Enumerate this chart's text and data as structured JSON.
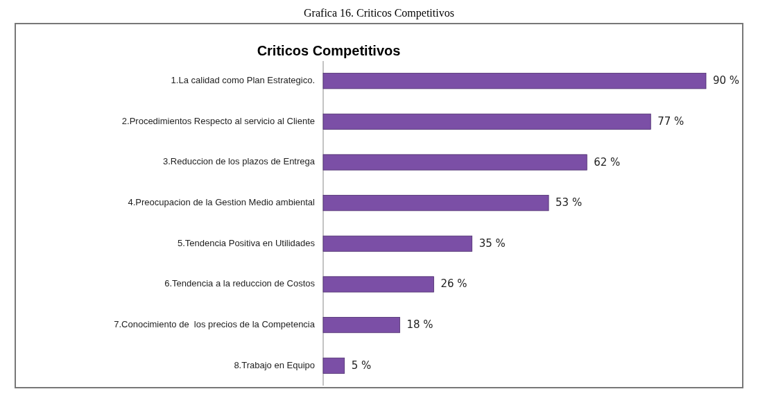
{
  "chart_data": {
    "type": "bar",
    "orientation": "horizontal",
    "title": "Criticos Competitivos",
    "annotations": [
      "Grafica 16. Criticos Competitivos"
    ],
    "categories": [
      "1.La calidad como Plan Estrategico.",
      "2.Procedimientos Respecto al servicio al Cliente",
      "3.Reduccion de los plazos de Entrega",
      "4.Preocupacion de la Gestion Medio ambiental",
      "5.Tendencia Positiva en Utilidades",
      "6.Tendencia a la reduccion de Costos",
      "7.Conocimiento de  los precios de la Competencia",
      "8.Trabajo en Equipo"
    ],
    "values": [
      90,
      77,
      62,
      53,
      35,
      26,
      18,
      5
    ],
    "value_labels": [
      "90 %",
      "77 %",
      "62 %",
      "53 %",
      "35 %",
      "26 %",
      "18 %",
      "5 %"
    ],
    "color": "#7b4fa6"
  }
}
